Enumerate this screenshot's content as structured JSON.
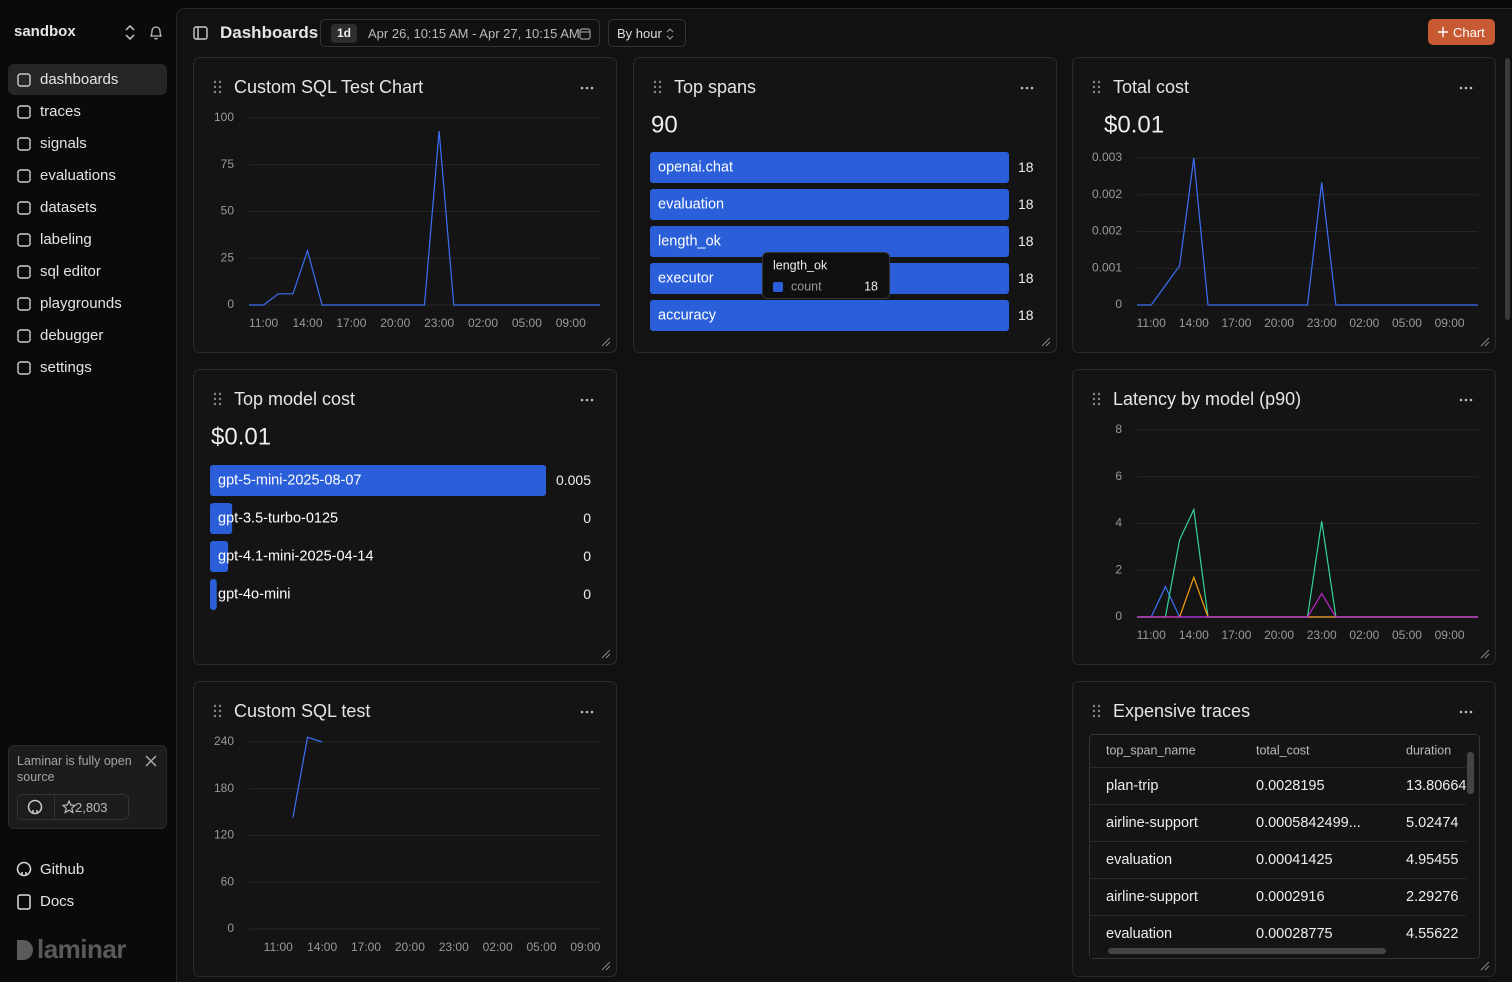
{
  "sidebar": {
    "workspace": "sandbox",
    "nav": [
      "dashboards",
      "traces",
      "signals",
      "evaluations",
      "datasets",
      "labeling",
      "sql editor",
      "playgrounds",
      "debugger",
      "settings"
    ],
    "banner": {
      "text": "Laminar is fully open source",
      "stars": "2,803"
    },
    "links": [
      "Github",
      "Docs"
    ],
    "logo": "laminar"
  },
  "header": {
    "title": "Dashboards",
    "range": "1d",
    "date_range": "Apr 26, 10:15 AM - Apr 27, 10:15 AM",
    "granularity": "By hour",
    "add_button": "Chart"
  },
  "chart_data": [
    {
      "type": "line",
      "title": "Custom SQL Test Chart",
      "categories": [
        null,
        "11:00",
        null,
        null,
        "14:00",
        null,
        null,
        "17:00",
        null,
        null,
        "20:00",
        null,
        null,
        "23:00",
        null,
        null,
        "02:00",
        null,
        null,
        "05:00",
        null,
        null,
        "09:00",
        null,
        null
      ],
      "series": [
        {
          "color": "#3b6ff5",
          "values": [
            0,
            0,
            6,
            6,
            29,
            0,
            0,
            0,
            0,
            0,
            0,
            0,
            0,
            93,
            0,
            0,
            0,
            0,
            0,
            0,
            0,
            0,
            0,
            0,
            0
          ]
        }
      ],
      "ylim": [
        0,
        100
      ],
      "yticks": [
        0,
        25,
        50,
        75,
        100
      ],
      "grid": true
    },
    {
      "type": "bar",
      "orientation": "horizontal",
      "title": "Top spans",
      "total": 90,
      "categories": [
        "openai.chat",
        "evaluation",
        "length_ok",
        "executor",
        "accuracy"
      ],
      "values": [
        18,
        18,
        18,
        18,
        18
      ],
      "color": "#2b5fd9",
      "xlim": [
        0,
        18
      ],
      "tooltip": {
        "title": "length_ok",
        "label": "count",
        "value": 18
      }
    },
    {
      "type": "line",
      "title": "Total cost",
      "total": "$0.01",
      "categories": [
        null,
        "11:00",
        null,
        null,
        "14:00",
        null,
        null,
        "17:00",
        null,
        null,
        "20:00",
        null,
        null,
        "23:00",
        null,
        null,
        "02:00",
        null,
        null,
        "05:00",
        null,
        null,
        "09:00",
        null,
        null
      ],
      "series": [
        {
          "color": "#3b6ff5",
          "values": [
            0,
            0,
            0.0004,
            0.0008,
            0.003,
            0,
            0,
            0,
            0,
            0,
            0,
            0,
            0,
            0.0025,
            0,
            0,
            0,
            0,
            0,
            0,
            0,
            0,
            0,
            0,
            0
          ]
        }
      ],
      "ylim": [
        0,
        0.003
      ],
      "yticks": [
        0,
        {
          "value": 0.00075,
          "label": "0.001"
        },
        {
          "value": 0.0015,
          "label": "0.002"
        },
        {
          "value": 0.00225,
          "label": "0.002"
        },
        0.003
      ],
      "grid": true
    },
    {
      "type": "bar",
      "orientation": "horizontal",
      "title": "Top model cost",
      "total": "$0.01",
      "categories": [
        "gpt-5-mini-2025-08-07",
        "gpt-3.5-turbo-0125",
        "gpt-4.1-mini-2025-04-14",
        "gpt-4o-mini"
      ],
      "values": [
        0.005,
        0.00033,
        0.00027,
        0.0001
      ],
      "value_labels": [
        "0.005",
        "0",
        "0",
        "0"
      ],
      "color": "#2b5fd9",
      "xlim": [
        0,
        0.005
      ]
    },
    {
      "type": "line",
      "title": "Latency by model (p90)",
      "categories": [
        null,
        "11:00",
        null,
        null,
        "14:00",
        null,
        null,
        "17:00",
        null,
        null,
        "20:00",
        null,
        null,
        "23:00",
        null,
        null,
        "02:00",
        null,
        null,
        "05:00",
        null,
        null,
        "09:00",
        null,
        null
      ],
      "series": [
        {
          "color": "#3b6ff5",
          "values": [
            0,
            0,
            1.3,
            0,
            0,
            0,
            0,
            0,
            0,
            0,
            0,
            0,
            0,
            0,
            0,
            0,
            0,
            0,
            0,
            0,
            0,
            0,
            0,
            0,
            0
          ]
        },
        {
          "color": "#34d399",
          "values": [
            0,
            0,
            0,
            3.3,
            4.6,
            0,
            0,
            0,
            0,
            0,
            0,
            0,
            0,
            4.1,
            0,
            0,
            0,
            0,
            0,
            0,
            0,
            0,
            0,
            0,
            0
          ]
        },
        {
          "color": "#f59e0b",
          "values": [
            0,
            0,
            0,
            0,
            1.7,
            0,
            0,
            0,
            0,
            0,
            0,
            0,
            0,
            0,
            0,
            0,
            0,
            0,
            0,
            0,
            0,
            0,
            0,
            0,
            0
          ]
        },
        {
          "color": "#c026d3",
          "values": [
            0,
            0,
            0,
            0,
            0,
            0,
            0,
            0,
            0,
            0,
            0,
            0,
            0,
            1.0,
            0,
            0,
            0,
            0,
            0,
            0,
            0,
            0,
            0,
            0,
            0
          ]
        }
      ],
      "ylim": [
        0,
        8
      ],
      "yticks": [
        0,
        2,
        4,
        6,
        8
      ],
      "grid": true
    },
    {
      "type": "line",
      "title": "Custom SQL test",
      "categories": [
        null,
        null,
        "11:00",
        null,
        null,
        "14:00",
        null,
        null,
        "17:00",
        null,
        null,
        "20:00",
        null,
        null,
        "23:00",
        null,
        null,
        "02:00",
        null,
        null,
        "05:00",
        null,
        null,
        "09:00",
        null
      ],
      "series": [
        {
          "color": "#3b6ff5",
          "values": [
            null,
            null,
            null,
            143,
            246,
            240,
            null,
            null,
            null,
            null,
            null,
            null,
            null,
            null,
            null,
            null,
            null,
            null,
            null,
            null,
            null,
            null,
            null,
            null,
            null
          ]
        }
      ],
      "ylim": [
        0,
        240
      ],
      "yticks": [
        0,
        60,
        120,
        180,
        240
      ],
      "grid": true
    }
  ],
  "table": {
    "title": "Expensive traces",
    "columns": [
      "top_span_name",
      "total_cost",
      "duration"
    ],
    "rows": [
      [
        "plan-trip",
        "0.0028195",
        "13.80664"
      ],
      [
        "airline-support",
        "0.0005842499...",
        "5.02474"
      ],
      [
        "evaluation",
        "0.00041425",
        "4.95455"
      ],
      [
        "airline-support",
        "0.0002916",
        "2.29276"
      ],
      [
        "evaluation",
        "0.00028775",
        "4.55622"
      ]
    ]
  }
}
